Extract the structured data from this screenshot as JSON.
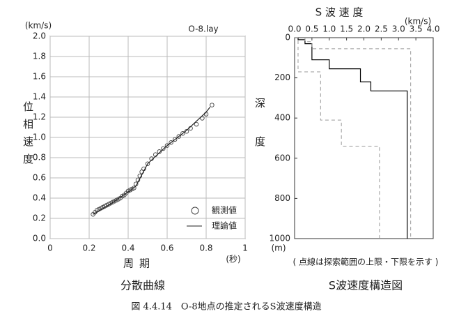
{
  "chart_data": [
    {
      "type": "scatter",
      "title": "O-8.lay",
      "caption": "分散曲線",
      "y_label": "位相速度",
      "y_unit": "(km/s)",
      "x_label": "周期",
      "x_unit": "(秒)",
      "xlim": [
        0,
        1
      ],
      "ylim": [
        0,
        2.0
      ],
      "xticks": [
        0,
        0.2,
        0.4,
        0.6,
        0.8,
        1
      ],
      "yticks": [
        {
          "value": 0,
          "label": "0.0"
        },
        0.2,
        0.4,
        0.6,
        0.8,
        {
          "value": 1,
          "label": "1.0"
        },
        1.2,
        1.4,
        1.6,
        1.8,
        {
          "value": 2,
          "label": "2.0"
        }
      ],
      "grid": true,
      "legend": "lower right",
      "series": [
        {
          "name": "観測値",
          "type": "scatter",
          "color": "#444",
          "x": [
            0.22,
            0.23,
            0.24,
            0.25,
            0.26,
            0.27,
            0.28,
            0.29,
            0.3,
            0.31,
            0.32,
            0.33,
            0.34,
            0.35,
            0.36,
            0.37,
            0.38,
            0.39,
            0.4,
            0.41,
            0.42,
            0.43,
            0.44,
            0.45,
            0.46,
            0.47,
            0.48,
            0.5,
            0.52,
            0.54,
            0.56,
            0.58,
            0.6,
            0.62,
            0.64,
            0.66,
            0.68,
            0.7,
            0.72,
            0.75,
            0.78,
            0.8,
            0.83
          ],
          "values": [
            0.24,
            0.26,
            0.28,
            0.29,
            0.3,
            0.31,
            0.32,
            0.33,
            0.34,
            0.35,
            0.36,
            0.37,
            0.38,
            0.39,
            0.4,
            0.42,
            0.43,
            0.45,
            0.47,
            0.48,
            0.49,
            0.5,
            0.54,
            0.58,
            0.62,
            0.66,
            0.69,
            0.74,
            0.79,
            0.83,
            0.86,
            0.89,
            0.92,
            0.95,
            0.98,
            1.01,
            1.04,
            1.06,
            1.09,
            1.13,
            1.19,
            1.23,
            1.32
          ]
        },
        {
          "name": "理論値",
          "type": "line",
          "color": "#222",
          "x": [
            0.22,
            0.3,
            0.4,
            0.44,
            0.5,
            0.6,
            0.7,
            0.8,
            0.82
          ],
          "values": [
            0.24,
            0.33,
            0.46,
            0.52,
            0.74,
            0.92,
            1.07,
            1.25,
            1.3
          ]
        }
      ]
    },
    {
      "type": "line",
      "title": "S 波 速 度",
      "x_unit": "(km/s)",
      "y_label": "深度",
      "y_unit": "(m)",
      "note": "( 点線は探索範囲の上限・下限を示す )",
      "caption": "S波速度構造図",
      "x_axis_position": "top",
      "y_inverted": true,
      "grid": false,
      "xlim": [
        0,
        4.0
      ],
      "ylim": [
        0,
        1000
      ],
      "xticks": [
        {
          "value": 0,
          "label": "0.0"
        },
        0.5,
        {
          "value": 1,
          "label": "1.0"
        },
        1.5,
        {
          "value": 2,
          "label": "2.0"
        },
        2.5,
        {
          "value": 3,
          "label": "3.0"
        },
        3.5,
        {
          "value": 4,
          "label": "4.0"
        }
      ],
      "yticks": [
        0,
        200,
        400,
        600,
        800,
        1000
      ],
      "series": [
        {
          "type": "line",
          "style": "solid",
          "color": "#000",
          "x": [
            0,
            0.1,
            0.1,
            0.3,
            0.3,
            0.5,
            0.5,
            1.0,
            1.0,
            1.9,
            1.9,
            2.2,
            2.2,
            3.25,
            3.25
          ],
          "values": [
            0,
            0,
            10,
            10,
            30,
            30,
            110,
            110,
            155,
            155,
            220,
            220,
            265,
            265,
            1000
          ]
        },
        {
          "type": "line",
          "style": "dashed",
          "color": "#999",
          "x": [
            0.3,
            0.3,
            0.5,
            0.5,
            3.35,
            3.35
          ],
          "values": [
            0,
            20,
            20,
            55,
            55,
            1000
          ]
        },
        {
          "type": "line",
          "style": "dashed",
          "color": "#999",
          "x": [
            0,
            0.1,
            0.1,
            0.75,
            0.75,
            1.35,
            1.35,
            2.45,
            2.45
          ],
          "values": [
            0,
            0,
            170,
            170,
            410,
            410,
            540,
            540,
            1000
          ]
        }
      ]
    }
  ],
  "figure_caption": "図 4.4.14　O-8地点の推定されるS波速度構造"
}
